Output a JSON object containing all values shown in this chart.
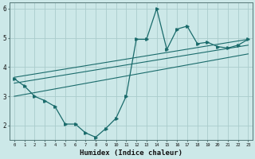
{
  "title": "",
  "xlabel": "Humidex (Indice chaleur)",
  "bg_color": "#cce8e8",
  "line_color": "#1a6b6b",
  "grid_color": "#aacccc",
  "x_min": -0.5,
  "x_max": 23.4,
  "y_min": 1.5,
  "y_max": 6.2,
  "yticks": [
    2,
    3,
    4,
    5,
    6
  ],
  "xticks": [
    0,
    1,
    2,
    3,
    4,
    5,
    6,
    7,
    8,
    9,
    10,
    11,
    12,
    13,
    14,
    15,
    16,
    17,
    18,
    19,
    20,
    21,
    22,
    23
  ],
  "series1_x": [
    0,
    1,
    2,
    3,
    4,
    5,
    6,
    7,
    8,
    9,
    10,
    11,
    12,
    13,
    14,
    15,
    16,
    17,
    18,
    19,
    20,
    21,
    22,
    23
  ],
  "series1_y": [
    3.6,
    3.35,
    3.0,
    2.85,
    2.65,
    2.05,
    2.05,
    1.75,
    1.6,
    1.9,
    2.25,
    3.0,
    4.95,
    4.95,
    6.0,
    4.6,
    5.3,
    5.4,
    4.8,
    4.85,
    4.7,
    4.65,
    4.75,
    4.95
  ],
  "trend1_x": [
    0,
    23
  ],
  "trend1_y": [
    3.65,
    4.95
  ],
  "trend2_x": [
    0,
    23
  ],
  "trend2_y": [
    3.45,
    4.75
  ],
  "trend3_x": [
    0,
    23
  ],
  "trend3_y": [
    3.0,
    4.45
  ]
}
